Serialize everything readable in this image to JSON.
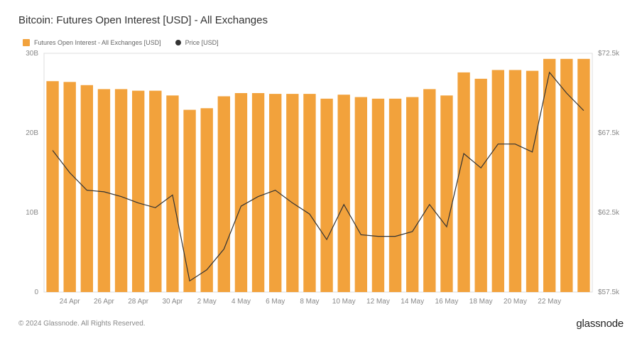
{
  "title": "Bitcoin: Futures Open Interest [USD] - All Exchanges",
  "legend": {
    "bars": "Futures Open Interest - All Exchanges [USD]",
    "line": "Price [USD]"
  },
  "footer": {
    "copyright": "© 2024 Glassnode. All Rights Reserved.",
    "brand": "glassnode"
  },
  "chart": {
    "type": "bar+line",
    "background_color": "#ffffff",
    "plot_border_color": "#dcdcdc",
    "plot_border_width": 1,
    "bar_color": "#f2a23c",
    "line_color": "#333333",
    "line_width": 1.2,
    "bar_width_ratio": 0.72,
    "title_fontsize": 15,
    "legend_fontsize": 9,
    "tick_fontsize": 10,
    "tick_color": "#888888",
    "x_labels": [
      "24 Apr",
      "26 Apr",
      "28 Apr",
      "30 Apr",
      "2 May",
      "4 May",
      "6 May",
      "8 May",
      "10 May",
      "12 May",
      "14 May",
      "16 May",
      "18 May",
      "20 May",
      "22 May"
    ],
    "x_label_every": 2,
    "x_label_start_index": 1,
    "left_axis": {
      "ticks": [
        0,
        "10B",
        "20B",
        "30B"
      ],
      "tick_values": [
        0,
        10,
        20,
        30
      ],
      "min": 0,
      "max": 30
    },
    "right_axis": {
      "ticks": [
        "$57.5k",
        "$62.5k",
        "$67.5k",
        "$72.5k"
      ],
      "tick_values": [
        57.5,
        62.5,
        67.5,
        72.5
      ],
      "min": 57.5,
      "max": 72.5
    },
    "bars": [
      26.5,
      26.4,
      26.0,
      25.5,
      25.5,
      25.3,
      25.3,
      24.7,
      22.9,
      23.1,
      24.6,
      25.0,
      25.0,
      24.9,
      24.9,
      24.9,
      24.3,
      24.8,
      24.5,
      24.3,
      24.3,
      24.5,
      25.5,
      24.7,
      27.6,
      26.8,
      27.9,
      27.9,
      27.8,
      29.3,
      29.3,
      29.3
    ],
    "line": [
      66.4,
      65.0,
      63.9,
      63.8,
      63.5,
      63.1,
      62.8,
      63.6,
      58.2,
      58.9,
      60.2,
      62.9,
      63.5,
      63.9,
      63.1,
      62.4,
      60.8,
      63.0,
      61.1,
      61.0,
      61.0,
      61.3,
      63.0,
      61.6,
      66.2,
      65.3,
      66.8,
      66.8,
      66.3,
      71.3,
      70.0,
      68.9
    ]
  }
}
